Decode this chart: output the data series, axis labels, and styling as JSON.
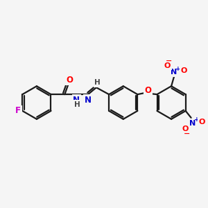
{
  "background_color": "#f5f5f5",
  "bond_color": "#1a1a1a",
  "atom_colors": {
    "O": "#ff0000",
    "N": "#0000cc",
    "F": "#cc00cc",
    "H": "#444444",
    "C": "#1a1a1a"
  },
  "figsize": [
    3.0,
    3.0
  ],
  "dpi": 100,
  "ring_r": 24,
  "lw": 1.6
}
